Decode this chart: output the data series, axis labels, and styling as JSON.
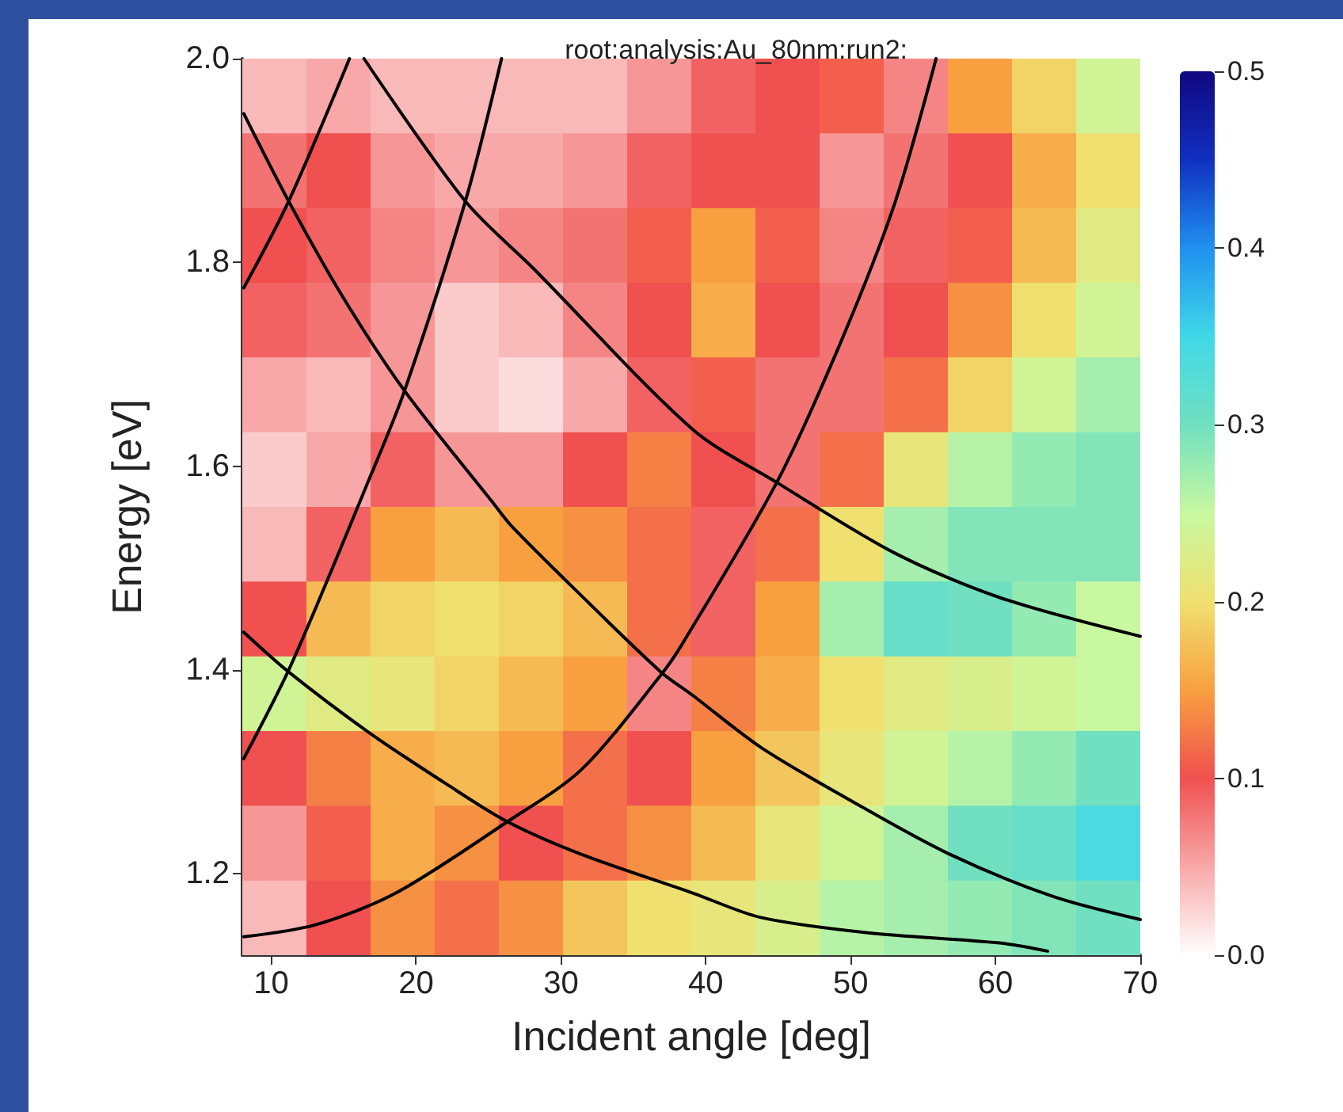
{
  "chart_data": {
    "type": "heatmap",
    "title": "root:analysis:Au_80nm:run2:",
    "xlabel": "Incident angle [deg]",
    "ylabel": "Energy [eV]",
    "xlim": [
      8,
      70
    ],
    "ylim": [
      1.12,
      2.0
    ],
    "xticks": [
      10,
      20,
      30,
      40,
      50,
      60,
      70
    ],
    "yticks": [
      {
        "value": 1.2,
        "label": "1.2"
      },
      {
        "value": 1.4,
        "label": "1.4"
      },
      {
        "value": 1.6,
        "label": "1.6"
      },
      {
        "value": 1.8,
        "label": "1.8"
      },
      {
        "value": 2,
        "label": "2.0"
      }
    ],
    "clim": [
      0,
      0.5
    ],
    "cticks": [
      {
        "value": 0,
        "label": "0.0"
      },
      {
        "value": 0.1,
        "label": "0.1"
      },
      {
        "value": 0.2,
        "label": "0.2"
      },
      {
        "value": 0.3,
        "label": "0.3"
      },
      {
        "value": 0.4,
        "label": "0.4"
      },
      {
        "value": 0.5,
        "label": "0.5"
      }
    ],
    "grid": false,
    "cells": [
      [
        0.04,
        0.05,
        0.04,
        0.04,
        0.04,
        0.04,
        0.06,
        0.09,
        0.1,
        0.11,
        0.07,
        0.15,
        0.19,
        0.24
      ],
      [
        0.08,
        0.1,
        0.06,
        0.05,
        0.05,
        0.06,
        0.09,
        0.1,
        0.1,
        0.06,
        0.08,
        0.1,
        0.16,
        0.2
      ],
      [
        0.1,
        0.09,
        0.07,
        0.06,
        0.07,
        0.08,
        0.11,
        0.15,
        0.11,
        0.07,
        0.09,
        0.11,
        0.17,
        0.22
      ],
      [
        0.09,
        0.08,
        0.06,
        0.03,
        0.04,
        0.07,
        0.1,
        0.16,
        0.1,
        0.08,
        0.1,
        0.14,
        0.2,
        0.24
      ],
      [
        0.05,
        0.04,
        0.06,
        0.03,
        0.02,
        0.05,
        0.09,
        0.11,
        0.08,
        0.08,
        0.12,
        0.19,
        0.24,
        0.27
      ],
      [
        0.03,
        0.05,
        0.09,
        0.06,
        0.06,
        0.1,
        0.13,
        0.1,
        0.08,
        0.12,
        0.21,
        0.26,
        0.28,
        0.29
      ],
      [
        0.04,
        0.09,
        0.15,
        0.17,
        0.15,
        0.14,
        0.12,
        0.09,
        0.12,
        0.2,
        0.27,
        0.29,
        0.29,
        0.29
      ],
      [
        0.1,
        0.17,
        0.19,
        0.2,
        0.19,
        0.17,
        0.12,
        0.09,
        0.15,
        0.27,
        0.31,
        0.3,
        0.28,
        0.25
      ],
      [
        0.24,
        0.22,
        0.21,
        0.19,
        0.17,
        0.15,
        0.07,
        0.13,
        0.16,
        0.2,
        0.22,
        0.23,
        0.24,
        0.25
      ],
      [
        0.1,
        0.13,
        0.16,
        0.17,
        0.15,
        0.12,
        0.1,
        0.15,
        0.18,
        0.21,
        0.24,
        0.26,
        0.28,
        0.3
      ],
      [
        0.06,
        0.11,
        0.16,
        0.14,
        0.1,
        0.12,
        0.14,
        0.17,
        0.21,
        0.24,
        0.27,
        0.3,
        0.31,
        0.34
      ],
      [
        0.04,
        0.1,
        0.14,
        0.12,
        0.14,
        0.18,
        0.2,
        0.21,
        0.23,
        0.26,
        0.27,
        0.28,
        0.29,
        0.3
      ]
    ],
    "series": [
      {
        "type": "line",
        "color": "#000000",
        "x": [
          8.1,
          11.2,
          15.4
        ],
        "values": [
          1.775,
          1.86,
          2.0
        ]
      },
      {
        "type": "line",
        "color": "#000000",
        "x": [
          8.1,
          11.4,
          16.9,
          19.2,
          23.4,
          25.9
        ],
        "values": [
          1.313,
          1.406,
          1.592,
          1.674,
          1.86,
          2.0
        ]
      },
      {
        "type": "line",
        "color": "#000000",
        "x": [
          16.4,
          23.4,
          28.1,
          39.1,
          44.9,
          53.0,
          60.3,
          70.0
        ],
        "values": [
          2.0,
          1.86,
          1.794,
          1.636,
          1.584,
          1.515,
          1.471,
          1.433
        ]
      },
      {
        "type": "line",
        "color": "#000000",
        "x": [
          8.1,
          11.2,
          14.9,
          19.2,
          25.2,
          26.6,
          31.4,
          36.9,
          39.1,
          43.8,
          50.1,
          56.7,
          63.9,
          70.0
        ],
        "values": [
          1.946,
          1.86,
          1.767,
          1.674,
          1.566,
          1.541,
          1.473,
          1.398,
          1.375,
          1.324,
          1.271,
          1.22,
          1.178,
          1.155
        ]
      },
      {
        "type": "line",
        "color": "#000000",
        "x": [
          8.1,
          11.2,
          16.7,
          22.2,
          26.3,
          31.4,
          39.1,
          43.8,
          51.2,
          60.3,
          63.6
        ],
        "values": [
          1.437,
          1.398,
          1.339,
          1.287,
          1.251,
          1.219,
          1.181,
          1.157,
          1.142,
          1.132,
          1.124
        ]
      },
      {
        "type": "line",
        "color": "#000000",
        "x": [
          8.1,
          13.1,
          18.6,
          26.3,
          31.4,
          36.9,
          38.4,
          44.9,
          49.3,
          53.0,
          55.9
        ],
        "values": [
          1.138,
          1.15,
          1.181,
          1.251,
          1.302,
          1.395,
          1.426,
          1.584,
          1.721,
          1.856,
          2.0
        ]
      }
    ]
  }
}
